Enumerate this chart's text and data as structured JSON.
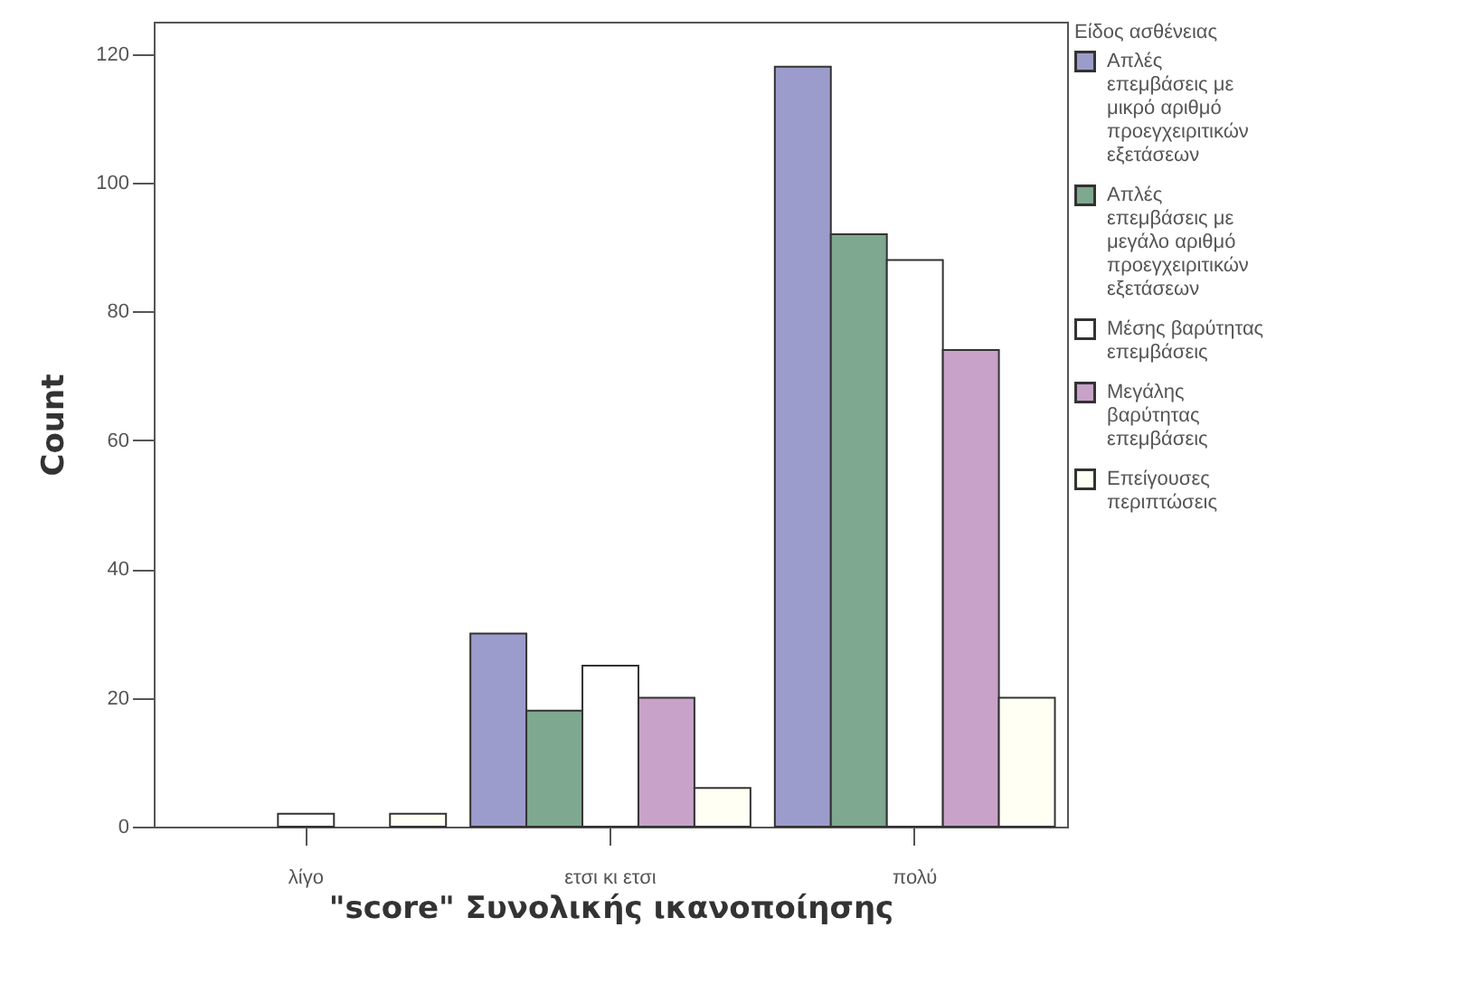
{
  "chart_data": {
    "type": "bar",
    "xlabel": "\"score\" Συνολικής ικανοποίησης",
    "ylabel": "Count",
    "legend_title": "Είδος ασθένειας",
    "categories": [
      "λίγο",
      "ετσι κι ετσι",
      "πολύ"
    ],
    "series": [
      {
        "name": "Απλές επεμβάσεις με μικρό αριθμό προεγχειριτικών εξετάσεων",
        "color": "#9c9ccc",
        "values": [
          0,
          30,
          118
        ]
      },
      {
        "name": "Απλές επεμβάσεις με μεγάλο αριθμό προεγχειριτικών εξετάσεων",
        "color": "#7fa890",
        "values": [
          0,
          18,
          92
        ]
      },
      {
        "name": "Μέσης βαρύτητας επεμβάσεις",
        "color": "#ffffff",
        "values": [
          2,
          25,
          88
        ]
      },
      {
        "name": "Μεγάλης βαρύτητας επεμβάσεις",
        "color": "#c8a2c8",
        "values": [
          0,
          20,
          74
        ]
      },
      {
        "name": "Επείγουσες περιπτώσεις",
        "color": "#fffff4",
        "values": [
          2,
          6,
          20
        ]
      }
    ],
    "ylim": [
      0,
      125
    ],
    "yticks": [
      0,
      20,
      40,
      60,
      80,
      100,
      120
    ],
    "grid": false,
    "legend": "right"
  }
}
